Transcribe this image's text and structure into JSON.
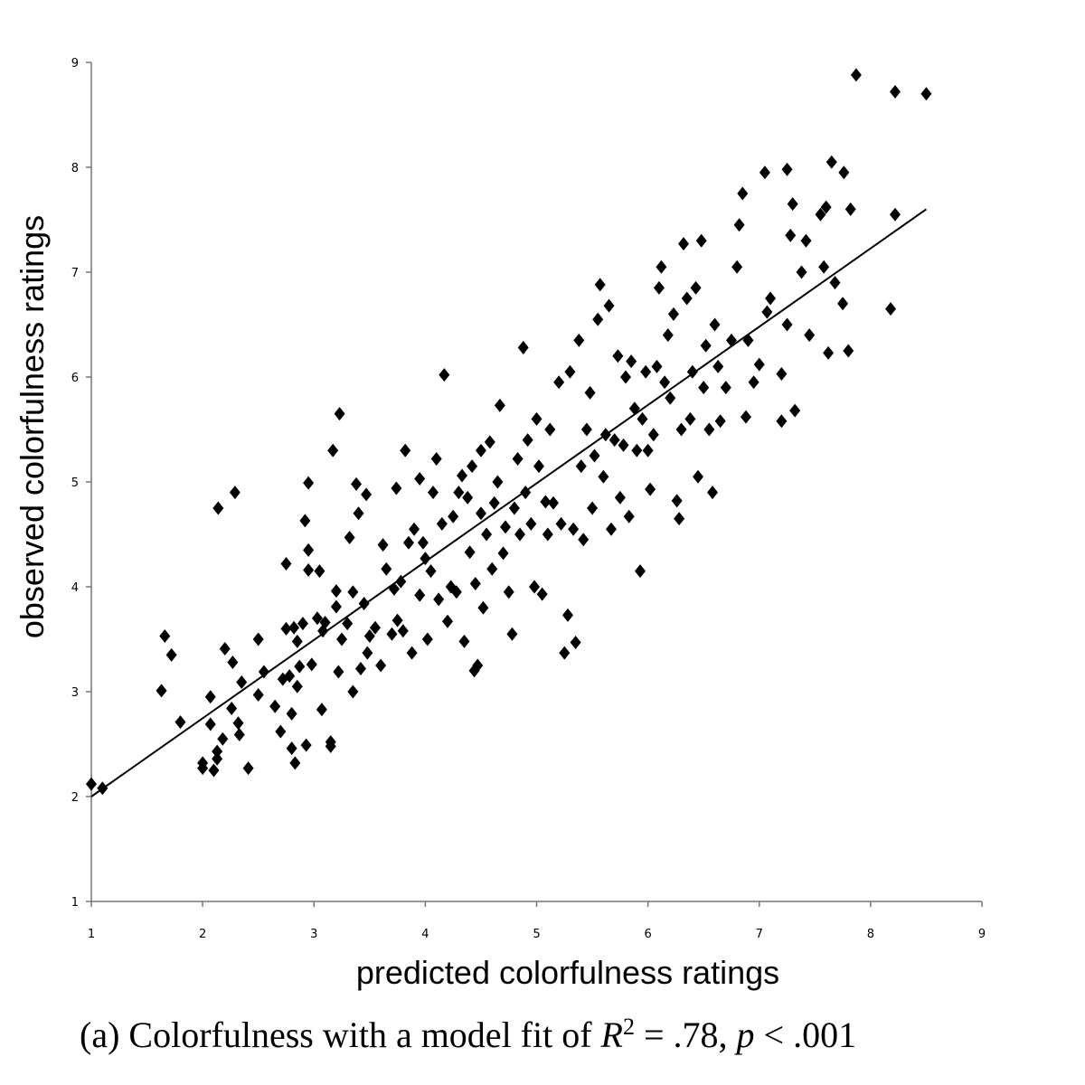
{
  "chart_data": {
    "type": "scatter",
    "xlabel": "predicted colorfulness ratings",
    "ylabel": "observed colorfulness ratings",
    "caption": [
      "(a) Colorfulness with a model fit of ",
      "R",
      "2",
      " = .78, ",
      "p",
      " < .001"
    ],
    "xlim": [
      1,
      9
    ],
    "ylim": [
      1,
      9
    ],
    "xticks": [
      1,
      2,
      3,
      4,
      5,
      6,
      7,
      8,
      9
    ],
    "yticks": [
      1,
      2,
      3,
      4,
      5,
      6,
      7,
      8,
      9
    ],
    "marker": "diamond",
    "trendline": {
      "x": [
        1,
        8.5
      ],
      "y": [
        2,
        7.6
      ],
      "color": "#000000"
    },
    "series": [
      {
        "color": "#000000",
        "x": [
          1.0,
          1.1,
          1.63,
          1.66,
          1.72,
          1.8,
          2.0,
          2.0,
          2.07,
          2.07,
          2.1,
          2.13,
          2.13,
          2.14,
          2.18,
          2.2,
          2.26,
          2.27,
          2.29,
          2.32,
          2.33,
          2.35,
          2.41,
          2.5,
          2.5,
          2.55,
          2.65,
          2.7,
          2.72,
          2.75,
          2.75,
          2.78,
          2.8,
          2.8,
          2.82,
          2.83,
          2.85,
          2.85,
          2.87,
          2.9,
          2.92,
          2.93,
          2.95,
          2.95,
          2.95,
          2.98,
          3.03,
          3.05,
          3.07,
          3.08,
          3.1,
          3.15,
          3.15,
          3.17,
          3.2,
          3.2,
          3.22,
          3.23,
          3.25,
          3.3,
          3.32,
          3.35,
          3.35,
          3.38,
          3.4,
          3.42,
          3.45,
          3.47,
          3.48,
          3.5,
          3.55,
          3.6,
          3.62,
          3.65,
          3.7,
          3.72,
          3.74,
          3.75,
          3.78,
          3.8,
          3.82,
          3.85,
          3.88,
          3.9,
          3.95,
          3.95,
          3.98,
          4.0,
          4.02,
          4.05,
          4.07,
          4.1,
          4.12,
          4.15,
          4.17,
          4.2,
          4.23,
          4.25,
          4.28,
          4.3,
          4.33,
          4.35,
          4.38,
          4.4,
          4.42,
          4.44,
          4.45,
          4.47,
          4.5,
          4.5,
          4.52,
          4.55,
          4.58,
          4.6,
          4.62,
          4.65,
          4.67,
          4.7,
          4.72,
          4.75,
          4.78,
          4.8,
          4.83,
          4.85,
          4.88,
          4.9,
          4.92,
          4.95,
          4.98,
          5.0,
          5.02,
          5.05,
          5.08,
          5.1,
          5.12,
          5.15,
          5.2,
          5.22,
          5.25,
          5.28,
          5.3,
          5.33,
          5.35,
          5.38,
          5.4,
          5.42,
          5.45,
          5.48,
          5.5,
          5.52,
          5.55,
          5.57,
          5.6,
          5.62,
          5.65,
          5.67,
          5.7,
          5.73,
          5.75,
          5.78,
          5.8,
          5.83,
          5.85,
          5.88,
          5.9,
          5.93,
          5.95,
          5.98,
          6.0,
          6.02,
          6.05,
          6.08,
          6.1,
          6.12,
          6.15,
          6.18,
          6.2,
          6.23,
          6.26,
          6.28,
          6.3,
          6.32,
          6.35,
          6.38,
          6.4,
          6.43,
          6.45,
          6.48,
          6.5,
          6.52,
          6.55,
          6.58,
          6.6,
          6.63,
          6.65,
          6.7,
          6.75,
          6.8,
          6.82,
          6.85,
          6.88,
          6.9,
          6.95,
          7.0,
          7.05,
          7.07,
          7.1,
          7.2,
          7.2,
          7.25,
          7.25,
          7.28,
          7.3,
          7.32,
          7.38,
          7.42,
          7.45,
          7.55,
          7.58,
          7.6,
          7.62,
          7.65,
          7.68,
          7.75,
          7.76,
          7.8,
          7.82,
          7.87,
          8.18,
          8.22,
          8.22,
          8.5
        ],
        "values": [
          2.12,
          2.08,
          3.01,
          3.53,
          3.35,
          2.71,
          2.27,
          2.32,
          2.95,
          2.69,
          2.25,
          2.43,
          2.36,
          4.75,
          2.55,
          3.41,
          2.84,
          3.28,
          4.9,
          2.7,
          2.59,
          3.09,
          2.27,
          3.5,
          2.97,
          3.19,
          2.86,
          2.62,
          3.12,
          4.22,
          3.6,
          3.15,
          2.46,
          2.79,
          3.61,
          2.32,
          3.05,
          3.48,
          3.24,
          3.65,
          4.63,
          2.49,
          4.35,
          4.99,
          4.16,
          3.26,
          3.7,
          4.15,
          2.83,
          3.58,
          3.66,
          2.52,
          2.48,
          5.3,
          3.81,
          3.96,
          3.19,
          5.65,
          3.5,
          3.65,
          4.47,
          3.95,
          3.0,
          4.98,
          4.7,
          3.22,
          3.84,
          4.88,
          3.37,
          3.53,
          3.61,
          3.25,
          4.4,
          4.17,
          3.55,
          3.98,
          4.94,
          3.68,
          4.05,
          3.58,
          5.3,
          4.42,
          3.37,
          4.55,
          3.92,
          5.03,
          4.42,
          4.27,
          3.5,
          4.15,
          4.9,
          5.22,
          3.88,
          4.6,
          6.02,
          3.67,
          4.0,
          4.67,
          3.95,
          4.9,
          5.06,
          3.48,
          4.85,
          4.33,
          5.15,
          3.2,
          4.03,
          3.25,
          4.7,
          5.3,
          3.8,
          4.5,
          5.38,
          4.17,
          4.8,
          5.0,
          5.73,
          4.32,
          4.57,
          3.95,
          3.55,
          4.75,
          5.22,
          4.5,
          6.28,
          4.9,
          5.4,
          4.6,
          4.0,
          5.6,
          5.15,
          3.93,
          4.81,
          4.5,
          5.5,
          4.8,
          5.95,
          4.6,
          3.37,
          3.73,
          6.05,
          4.55,
          3.47,
          6.35,
          5.15,
          4.45,
          5.5,
          5.85,
          4.75,
          5.25,
          6.55,
          6.88,
          5.05,
          5.45,
          6.68,
          4.55,
          5.4,
          6.2,
          4.85,
          5.35,
          6.0,
          4.67,
          6.15,
          5.7,
          5.3,
          4.15,
          5.6,
          6.05,
          5.3,
          4.93,
          5.45,
          6.1,
          6.85,
          7.05,
          5.95,
          6.4,
          5.8,
          6.6,
          4.82,
          4.65,
          5.5,
          7.27,
          6.75,
          5.6,
          6.05,
          6.85,
          5.05,
          7.3,
          5.9,
          6.3,
          5.5,
          4.9,
          6.5,
          6.1,
          5.58,
          5.9,
          6.35,
          7.05,
          7.45,
          7.75,
          5.62,
          6.35,
          5.95,
          6.12,
          7.95,
          6.62,
          6.75,
          5.58,
          6.03,
          6.5,
          7.98,
          7.35,
          7.65,
          5.68,
          7.0,
          7.3,
          6.4,
          7.55,
          7.05,
          7.62,
          6.23,
          8.05,
          6.9,
          6.7,
          7.95,
          6.25,
          7.6,
          8.88,
          6.65,
          7.55,
          8.72,
          8.7
        ]
      }
    ]
  }
}
